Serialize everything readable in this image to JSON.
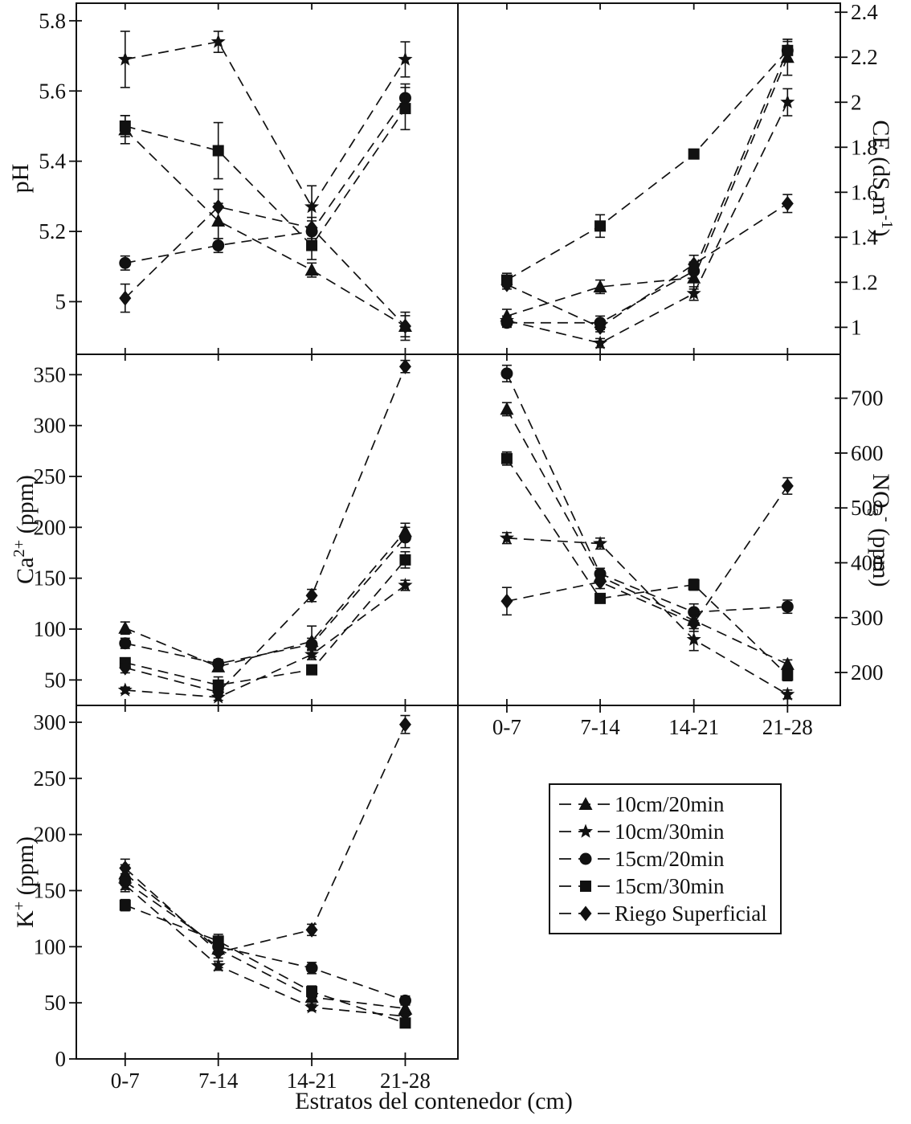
{
  "figure": {
    "x_axis_title": "Estratos del contenedor (cm)",
    "colors": {
      "ink": "#111111",
      "background": "#ffffff"
    }
  },
  "axis_titles": {
    "ph": {
      "pre": "pH"
    },
    "ce": {
      "pre": "CE (dS m",
      "sup": "-1",
      "post": ")"
    },
    "ca": {
      "pre": "Ca",
      "sup": "2+",
      "post": " (ppm)"
    },
    "no3": {
      "pre": "NO",
      "sub": "3",
      "sup": "-",
      "post": " (ppm)"
    },
    "k": {
      "pre": "K",
      "sup": "+",
      "post": " (ppm)"
    }
  },
  "legend": {
    "items": [
      {
        "label": "10cm/20min",
        "marker": "triangle"
      },
      {
        "label": "10cm/30min",
        "marker": "star"
      },
      {
        "label": "15cm/20min",
        "marker": "circle"
      },
      {
        "label": "15cm/30min",
        "marker": "square"
      },
      {
        "label": "Riego Superficial",
        "marker": "diamond"
      }
    ]
  },
  "chart_data": {
    "type": "line",
    "categories": [
      "0-7",
      "7-14",
      "14-21",
      "21-28"
    ],
    "xlabel": "Estratos del contenedor (cm)",
    "legend_position": "bottom-right box",
    "grid": false,
    "line_style": "dashed with error bars, black-and-white",
    "panels": [
      {
        "id": "ph",
        "ylabel": "pH",
        "y_side": "left",
        "ylim": [
          4.85,
          5.85
        ],
        "yticks": [
          5,
          5.2,
          5.4,
          5.6,
          5.8
        ],
        "ytick_labels": [
          "5",
          "5.2",
          "5.4",
          "5.6",
          "5.8"
        ],
        "show_x_labels": false,
        "series": [
          {
            "name": "10cm/20min",
            "marker": "triangle",
            "values": [
              5.49,
              5.23,
              5.09,
              4.93
            ],
            "errors": [
              0.04,
              0.05,
              0.02,
              0.03
            ]
          },
          {
            "name": "10cm/30min",
            "marker": "star",
            "values": [
              5.69,
              5.74,
              5.27,
              5.69
            ],
            "errors": [
              0.08,
              0.03,
              0.06,
              0.05
            ]
          },
          {
            "name": "15cm/20min",
            "marker": "circle",
            "values": [
              5.11,
              5.16,
              5.2,
              5.58
            ],
            "errors": [
              0.02,
              0.02,
              0.03,
              0.04
            ]
          },
          {
            "name": "15cm/30min",
            "marker": "square",
            "values": [
              5.5,
              5.43,
              5.16,
              5.55
            ],
            "errors": [
              0.03,
              0.08,
              0.04,
              0.06
            ]
          },
          {
            "name": "Riego Superficial",
            "marker": "diamond",
            "values": [
              5.01,
              5.27,
              5.21,
              4.93
            ],
            "errors": [
              0.04,
              0.05,
              0.03,
              0.04
            ]
          }
        ]
      },
      {
        "id": "ce",
        "ylabel": "CE (dS m-1)",
        "y_side": "right",
        "ylim": [
          0.88,
          2.44
        ],
        "yticks": [
          1,
          1.2,
          1.4,
          1.6,
          1.8,
          2,
          2.2,
          2.4
        ],
        "ytick_labels": [
          "1",
          "1.2",
          "1.4",
          "1.6",
          "1.8",
          "2",
          "2.2",
          "2.4"
        ],
        "show_x_labels": false,
        "series": [
          {
            "name": "10cm/20min",
            "marker": "triangle",
            "values": [
              1.05,
              1.18,
              1.22,
              2.2
            ],
            "errors": [
              0.03,
              0.03,
              0.05,
              0.08
            ]
          },
          {
            "name": "10cm/30min",
            "marker": "star",
            "values": [
              1.03,
              0.93,
              1.15,
              2.0
            ],
            "errors": [
              0.02,
              0.02,
              0.03,
              0.06
            ]
          },
          {
            "name": "15cm/20min",
            "marker": "circle",
            "values": [
              1.02,
              1.02,
              1.25,
              2.23
            ],
            "errors": [
              0.02,
              0.03,
              0.04,
              0.05
            ]
          },
          {
            "name": "15cm/30min",
            "marker": "square",
            "values": [
              1.21,
              1.45,
              1.77,
              2.23
            ],
            "errors": [
              0.03,
              0.05,
              0.02,
              0.04
            ]
          },
          {
            "name": "Riego Superficial",
            "marker": "diamond",
            "values": [
              1.19,
              1.0,
              1.28,
              1.55
            ],
            "errors": [
              0.02,
              0.02,
              0.04,
              0.04
            ]
          }
        ]
      },
      {
        "id": "ca",
        "ylabel": "Ca2+ (ppm)",
        "y_side": "left",
        "ylim": [
          25,
          370
        ],
        "yticks": [
          50,
          100,
          150,
          200,
          250,
          300,
          350
        ],
        "ytick_labels": [
          "50",
          "100",
          "150",
          "200",
          "250",
          "300",
          "350"
        ],
        "show_x_labels": false,
        "series": [
          {
            "name": "10cm/20min",
            "marker": "triangle",
            "values": [
              101,
              63,
              88,
              196
            ],
            "errors": [
              6,
              4,
              15,
              8
            ]
          },
          {
            "name": "10cm/30min",
            "marker": "star",
            "values": [
              40,
              33,
              75,
              143
            ],
            "errors": [
              3,
              3,
              5,
              5
            ]
          },
          {
            "name": "15cm/20min",
            "marker": "circle",
            "values": [
              86,
              66,
              85,
              190
            ],
            "errors": [
              5,
              4,
              6,
              10
            ]
          },
          {
            "name": "15cm/30min",
            "marker": "square",
            "values": [
              67,
              45,
              60,
              168
            ],
            "errors": [
              4,
              8,
              4,
              8
            ]
          },
          {
            "name": "Riego Superficial",
            "marker": "diamond",
            "values": [
              62,
              38,
              133,
              358
            ],
            "errors": [
              5,
              4,
              6,
              6
            ]
          }
        ]
      },
      {
        "id": "no3",
        "ylabel": "NO3- (ppm)",
        "y_side": "right",
        "ylim": [
          140,
          780
        ],
        "yticks": [
          200,
          300,
          400,
          500,
          600,
          700
        ],
        "ytick_labels": [
          "200",
          "300",
          "400",
          "500",
          "600",
          "700"
        ],
        "show_x_labels": true,
        "series": [
          {
            "name": "10cm/20min",
            "marker": "triangle",
            "values": [
              680,
              375,
              295,
              215
            ],
            "errors": [
              12,
              10,
              15,
              8
            ]
          },
          {
            "name": "10cm/30min",
            "marker": "star",
            "values": [
              445,
              435,
              260,
              160
            ],
            "errors": [
              10,
              10,
              20,
              8
            ]
          },
          {
            "name": "15cm/20min",
            "marker": "circle",
            "values": [
              745,
              380,
              310,
              320
            ],
            "errors": [
              15,
              10,
              15,
              12
            ]
          },
          {
            "name": "15cm/30min",
            "marker": "square",
            "values": [
              590,
              335,
              360,
              195
            ],
            "errors": [
              12,
              8,
              10,
              10
            ]
          },
          {
            "name": "Riego Superficial",
            "marker": "diamond",
            "values": [
              330,
              365,
              290,
              540
            ],
            "errors": [
              25,
              12,
              15,
              15
            ]
          }
        ]
      },
      {
        "id": "k",
        "ylabel": "K+ (ppm)",
        "y_side": "left",
        "ylim": [
          0,
          315
        ],
        "yticks": [
          0,
          50,
          100,
          150,
          200,
          250,
          300
        ],
        "ytick_labels": [
          "0",
          "50",
          "100",
          "150",
          "200",
          "250",
          "300"
        ],
        "show_x_labels": true,
        "series": [
          {
            "name": "10cm/20min",
            "marker": "triangle",
            "values": [
              165,
              98,
              55,
              45
            ],
            "errors": [
              8,
              5,
              4,
              4
            ]
          },
          {
            "name": "10cm/30min",
            "marker": "star",
            "values": [
              155,
              83,
              46,
              38
            ],
            "errors": [
              6,
              4,
              3,
              3
            ]
          },
          {
            "name": "15cm/20min",
            "marker": "circle",
            "values": [
              158,
              100,
              81,
              52
            ],
            "errors": [
              7,
              5,
              5,
              4
            ]
          },
          {
            "name": "15cm/30min",
            "marker": "square",
            "values": [
              137,
              105,
              60,
              32
            ],
            "errors": [
              5,
              6,
              5,
              3
            ]
          },
          {
            "name": "Riego Superficial",
            "marker": "diamond",
            "values": [
              170,
              95,
              115,
              298
            ],
            "errors": [
              8,
              5,
              5,
              8
            ]
          }
        ]
      }
    ]
  }
}
